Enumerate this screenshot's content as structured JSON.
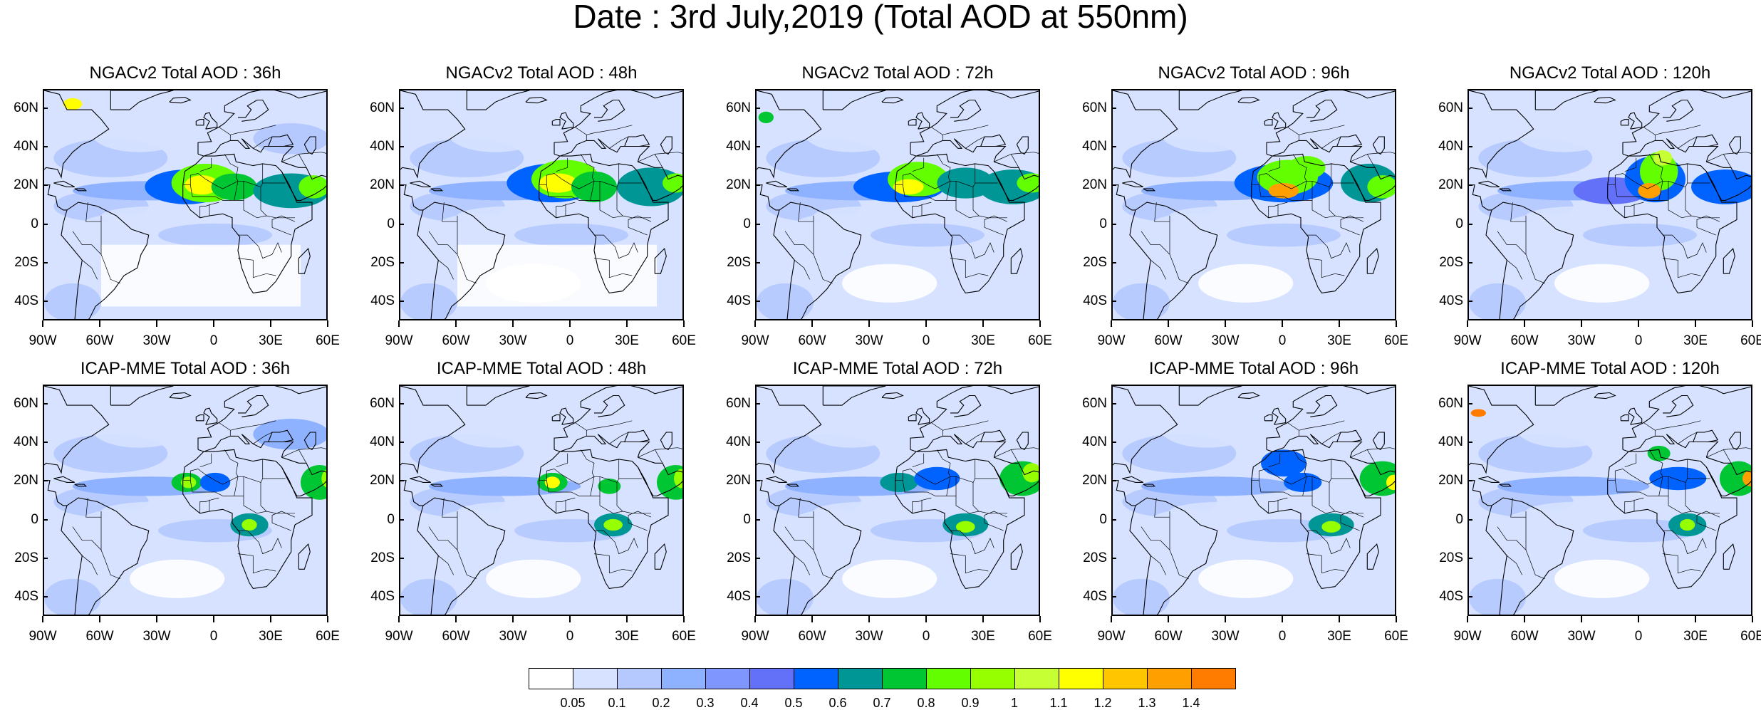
{
  "title": "Date : 3rd July,2019 (Total AOD at 550nm)",
  "lat_labels": [
    "60N",
    "40N",
    "20N",
    "0",
    "20S",
    "40S"
  ],
  "lon_labels": [
    "90W",
    "60W",
    "30W",
    "0",
    "30E",
    "60E"
  ],
  "map_extent": {
    "lon_min": -90,
    "lon_max": 60,
    "lat_min": -50,
    "lat_max": 70
  },
  "rows": [
    {
      "model": "NGACv2",
      "panels": [
        {
          "title": "NGACv2 Total AOD : 36h",
          "forecast_hour": 36
        },
        {
          "title": "NGACv2 Total AOD : 48h",
          "forecast_hour": 48
        },
        {
          "title": "NGACv2 Total AOD : 72h",
          "forecast_hour": 72
        },
        {
          "title": "NGACv2 Total AOD : 96h",
          "forecast_hour": 96
        },
        {
          "title": "NGACv2 Total AOD : 120h",
          "forecast_hour": 120
        }
      ]
    },
    {
      "model": "ICAP-MME",
      "panels": [
        {
          "title": "ICAP-MME Total AOD : 36h",
          "forecast_hour": 36
        },
        {
          "title": "ICAP-MME Total AOD : 48h",
          "forecast_hour": 48
        },
        {
          "title": "ICAP-MME Total AOD : 72h",
          "forecast_hour": 72
        },
        {
          "title": "ICAP-MME Total AOD : 96h",
          "forecast_hour": 96
        },
        {
          "title": "ICAP-MME Total AOD : 120h",
          "forecast_hour": 120
        }
      ]
    }
  ],
  "colorbar": {
    "labels": [
      "0.05",
      "0.1",
      "0.2",
      "0.3",
      "0.4",
      "0.5",
      "0.6",
      "0.7",
      "0.8",
      "0.9",
      "1",
      "1.1",
      "1.2",
      "1.3",
      "1.4"
    ],
    "colors": [
      "#ffffff",
      "#d6e2ff",
      "#b5c9ff",
      "#8eb2ff",
      "#7f96ff",
      "#6370f8",
      "#0063ff",
      "#009696",
      "#00c633",
      "#63ff00",
      "#96ff00",
      "#c6ff33",
      "#ffff00",
      "#ffc600",
      "#ffa000",
      "#ff7c00",
      "#ff1900"
    ]
  }
}
